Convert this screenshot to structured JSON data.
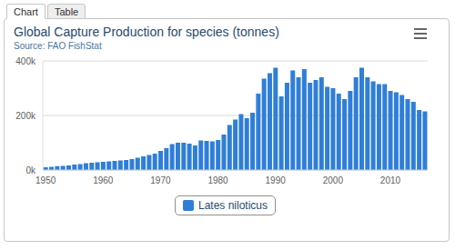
{
  "tabs": [
    "Chart",
    "Table"
  ],
  "chart_data": {
    "type": "bar",
    "title": "Global Capture Production for species (tonnes)",
    "subtitle": "Source: FAO FishStat",
    "categories": [
      "1950",
      null,
      null,
      null,
      null,
      null,
      null,
      null,
      null,
      null,
      "1960",
      null,
      null,
      null,
      null,
      null,
      null,
      null,
      null,
      null,
      "1970",
      null,
      null,
      null,
      null,
      null,
      null,
      null,
      null,
      null,
      "1980",
      null,
      null,
      null,
      null,
      null,
      null,
      null,
      null,
      null,
      "1990",
      null,
      null,
      null,
      null,
      null,
      null,
      null,
      null,
      null,
      "2000",
      null,
      null,
      null,
      null,
      null,
      null,
      null,
      null,
      null,
      "2010",
      null,
      null,
      null,
      null,
      null,
      null
    ],
    "series": [
      {
        "name": "Lates niloticus",
        "color": "#2f7ed8",
        "values": [
          10000,
          12000,
          14000,
          15000,
          17000,
          20000,
          22000,
          25000,
          27000,
          28000,
          30000,
          32000,
          33000,
          35000,
          37000,
          40000,
          45000,
          50000,
          55000,
          60000,
          70000,
          80000,
          95000,
          100000,
          100000,
          97000,
          90000,
          108000,
          107000,
          105000,
          110000,
          130000,
          165000,
          185000,
          205000,
          190000,
          210000,
          280000,
          335000,
          355000,
          375000,
          270000,
          320000,
          365000,
          340000,
          370000,
          320000,
          330000,
          340000,
          305000,
          300000,
          280000,
          260000,
          290000,
          340000,
          375000,
          340000,
          325000,
          315000,
          315000,
          290000,
          285000,
          275000,
          260000,
          250000,
          220000,
          215000
        ]
      }
    ],
    "ylim": [
      0,
      400000
    ],
    "yticks": [
      {
        "value": 0,
        "label": "0k"
      },
      {
        "value": 200000,
        "label": "200k"
      },
      {
        "value": 400000,
        "label": "400k"
      }
    ],
    "grid": true,
    "legend": "bottom"
  }
}
